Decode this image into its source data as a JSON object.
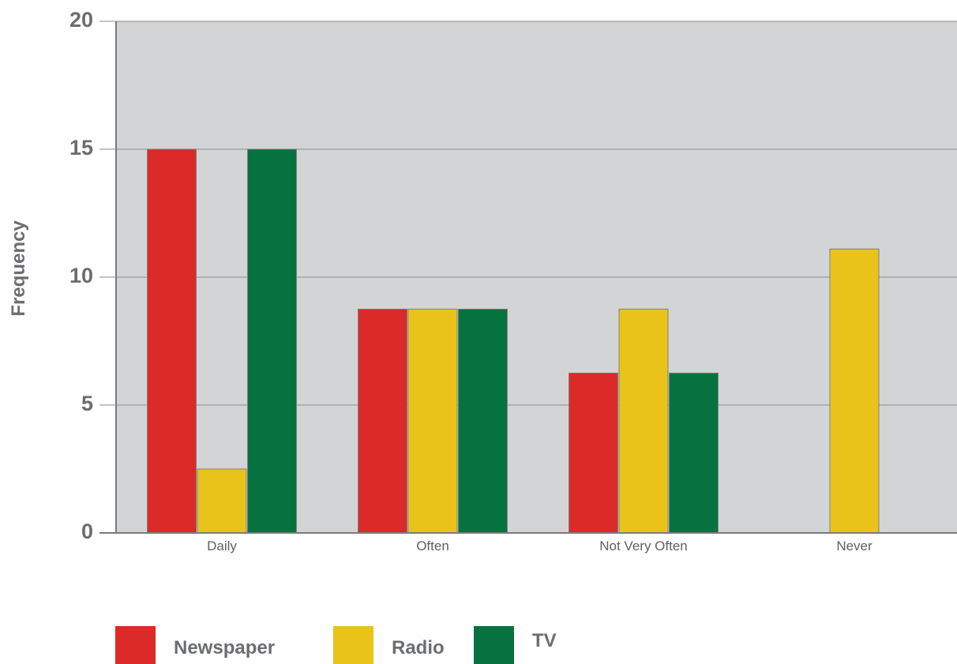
{
  "chart_data": {
    "type": "bar",
    "title": "",
    "xlabel": "",
    "ylabel": "Frequency",
    "categories": [
      "Daily",
      "Often",
      "Not Very Often",
      "Never"
    ],
    "series": [
      {
        "name": "Newspaper",
        "color": "#dc2a28",
        "values": [
          15,
          8.75,
          6.25,
          0
        ]
      },
      {
        "name": "Radio",
        "color": "#e9c31a",
        "values": [
          2.5,
          8.75,
          8.75,
          11.1
        ]
      },
      {
        "name": "TV",
        "color": "#06723f",
        "values": [
          15,
          8.75,
          6.25,
          0
        ]
      }
    ],
    "ylim": [
      0,
      20
    ],
    "yticks": [
      "0",
      "5",
      "10",
      "15",
      "20"
    ],
    "grid": true,
    "plot_background": "#d3d4d6",
    "legend_position": "bottom-left"
  }
}
